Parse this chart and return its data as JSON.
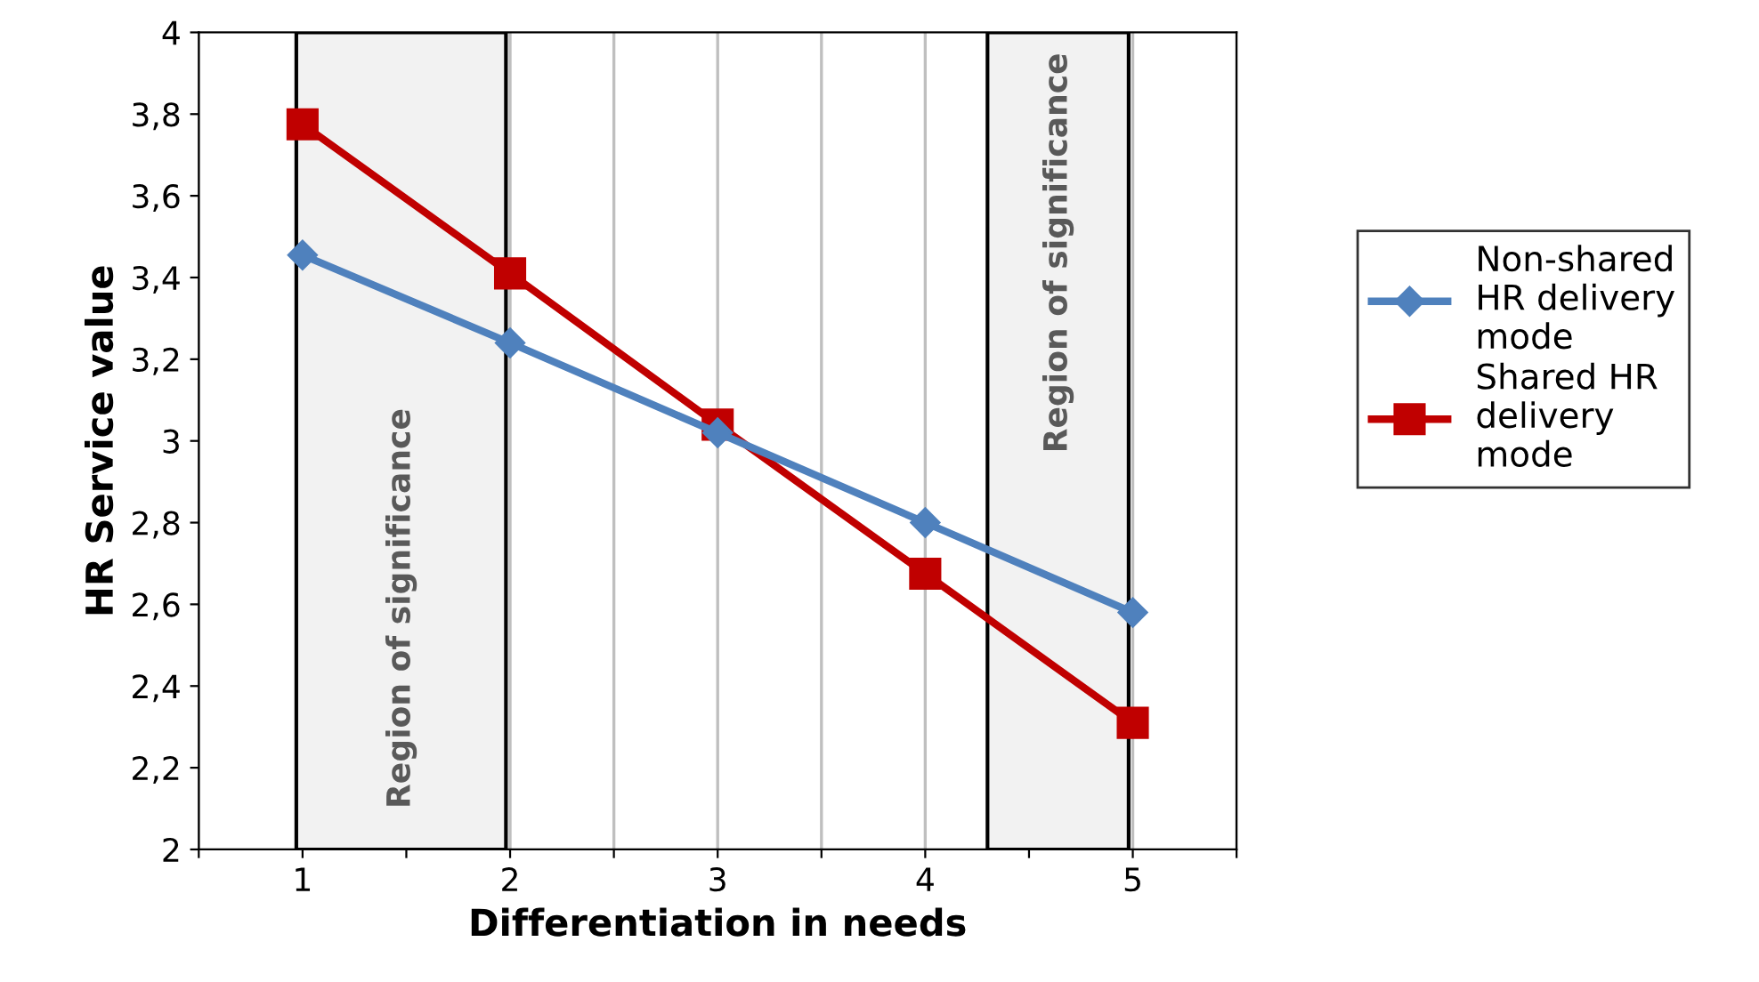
{
  "chart_data": {
    "type": "line",
    "xlabel": "Differentiation in needs",
    "ylabel": "HR Service value",
    "x": [
      1,
      2,
      3,
      4,
      5
    ],
    "series": [
      {
        "name": "Non-shared\nHR delivery\nmode",
        "color": "#4f81bd",
        "marker": "diamond",
        "values": [
          3.455,
          3.24,
          3.02,
          2.8,
          2.58
        ]
      },
      {
        "name": "Shared HR\ndelivery\nmode",
        "color": "#c00000",
        "marker": "square",
        "values": [
          3.775,
          3.41,
          3.04,
          2.675,
          2.31
        ]
      }
    ],
    "xlim": [
      0.5,
      5.5
    ],
    "xticks": [
      {
        "value": 0.5,
        "label": null
      },
      1,
      {
        "value": 1.5,
        "label": null
      },
      2,
      {
        "value": 2.5,
        "label": null
      },
      3,
      {
        "value": 3.5,
        "label": null
      },
      4,
      {
        "value": 4.5,
        "label": null
      },
      5,
      {
        "value": 5.5,
        "label": null
      }
    ],
    "ylim": [
      2,
      4
    ],
    "yticks": [
      2,
      {
        "value": 2.2,
        "label": "2,2"
      },
      {
        "value": 2.4,
        "label": "2,4"
      },
      {
        "value": 2.6,
        "label": "2,6"
      },
      {
        "value": 2.8,
        "label": "2,8"
      },
      3,
      {
        "value": 3.2,
        "label": "3,2"
      },
      {
        "value": 3.4,
        "label": "3,4"
      },
      {
        "value": 3.6,
        "label": "3,6"
      },
      {
        "value": 3.8,
        "label": "3,8"
      },
      4
    ],
    "bands": [
      {
        "axis": "x",
        "from": 0.97,
        "to": 1.98,
        "label": "Region of significance",
        "color": "#f2f2f2"
      },
      {
        "axis": "x",
        "from": 4.3,
        "to": 4.98,
        "label": "Region of significance",
        "color": "#f2f2f2"
      }
    ],
    "grid": "x",
    "legend": "right",
    "line_style": "solid"
  }
}
